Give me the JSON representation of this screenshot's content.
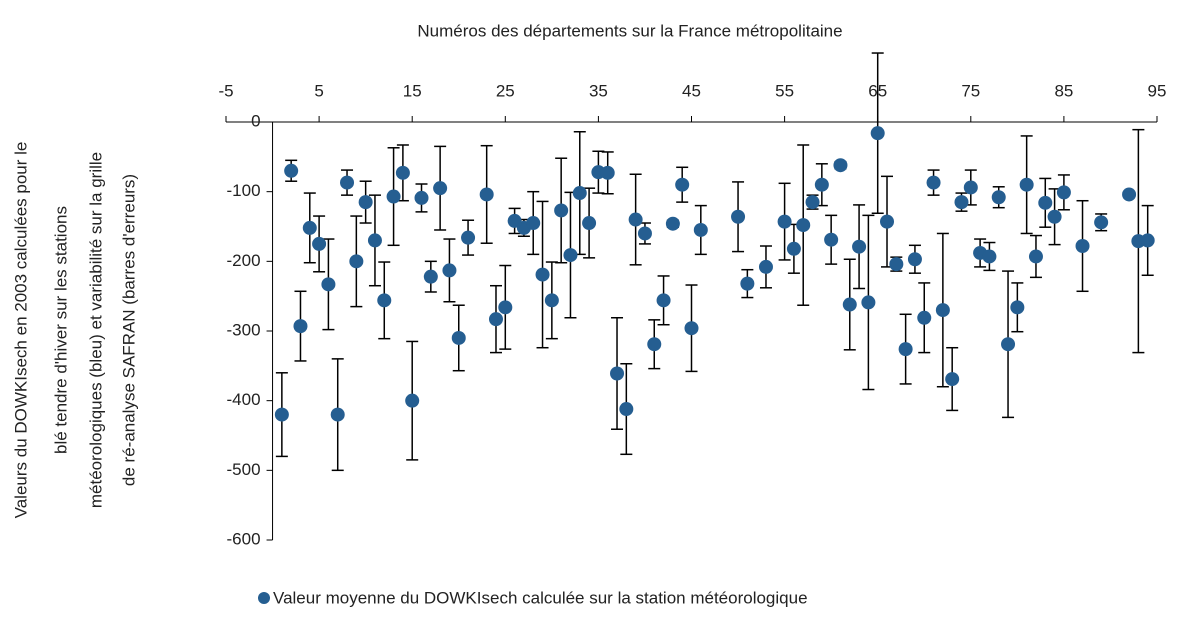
{
  "chart_data": {
    "type": "scatter",
    "title": "Numéros des départements sur la France métropolitaine",
    "ylabel": [
      "Valeurs du DOWKIsech en 2003 calculées pour le",
      "blé tendre d'hiver  sur les stations",
      "météorologiques (bleu) et variabilité sur la grille",
      "de ré-analyse SAFRAN (barres d'erreurs)"
    ],
    "xlim": [
      -5,
      95
    ],
    "xticks": [
      -5,
      5,
      15,
      25,
      35,
      45,
      55,
      65,
      75,
      85,
      95
    ],
    "ylim": [
      -600,
      0
    ],
    "yticks": [
      -600,
      -500,
      -400,
      -300,
      -200,
      -100,
      0
    ],
    "y_axis_crossing": 0,
    "legend": "bottom",
    "error_color": "#000000",
    "series": [
      {
        "name": "Valeur moyenne du DOWKIsech calculée sur la station météorologique",
        "color": "#255e91",
        "x": [
          1,
          2,
          3,
          4,
          5,
          6,
          7,
          8,
          9,
          10,
          11,
          12,
          13,
          14,
          15,
          16,
          17,
          18,
          19,
          20,
          21,
          23,
          24,
          25,
          26,
          27,
          28,
          29,
          30,
          31,
          32,
          33,
          34,
          35,
          36,
          37,
          38,
          39,
          40,
          41,
          42,
          43,
          44,
          45,
          46,
          50,
          51,
          53,
          55,
          56,
          57,
          58,
          59,
          60,
          61,
          62,
          63,
          64,
          65,
          66,
          67,
          68,
          69,
          70,
          71,
          72,
          73,
          74,
          75,
          76,
          77,
          78,
          79,
          80,
          81,
          82,
          83,
          84,
          85,
          87,
          89,
          92,
          93,
          94
        ],
        "values": [
          -420,
          -70,
          -293,
          -152,
          -175,
          -233,
          -420,
          -87,
          -200,
          -115,
          -170,
          -256,
          -107,
          -73,
          -400,
          -109,
          -222,
          -95,
          -213,
          -310,
          -166,
          -104,
          -283,
          -266,
          -142,
          -152,
          -145,
          -219,
          -256,
          -127,
          -191,
          -102,
          -145,
          -72,
          -73,
          -361,
          -412,
          -140,
          -160,
          -319,
          -256,
          -146,
          -90,
          -296,
          -155,
          -136,
          -232,
          -208,
          -143,
          -182,
          -148,
          -115,
          -90,
          -169,
          -62,
          -262,
          -179,
          -259,
          -16,
          -143,
          -204,
          -326,
          -197,
          -281,
          -87,
          -270,
          -369,
          -115,
          -94,
          -188,
          -193,
          -108,
          -319,
          -266,
          -90,
          -193,
          -116,
          -136,
          -101,
          -178,
          -144,
          -104,
          -171,
          -170
        ],
        "errors": [
          60,
          15,
          50,
          50,
          40,
          65,
          80,
          18,
          65,
          30,
          65,
          55,
          70,
          40,
          85,
          20,
          22,
          60,
          45,
          47,
          25,
          70,
          48,
          60,
          18,
          12,
          45,
          105,
          55,
          75,
          90,
          88,
          50,
          30,
          30,
          80,
          65,
          65,
          15,
          35,
          35,
          5,
          25,
          62,
          35,
          50,
          20,
          30,
          55,
          35,
          115,
          10,
          30,
          35,
          5,
          65,
          60,
          125,
          115,
          65,
          10,
          50,
          20,
          50,
          18,
          110,
          45,
          13,
          25,
          20,
          20,
          15,
          105,
          35,
          70,
          30,
          35,
          40,
          25,
          65,
          12,
          0,
          160,
          50
        ]
      }
    ]
  }
}
